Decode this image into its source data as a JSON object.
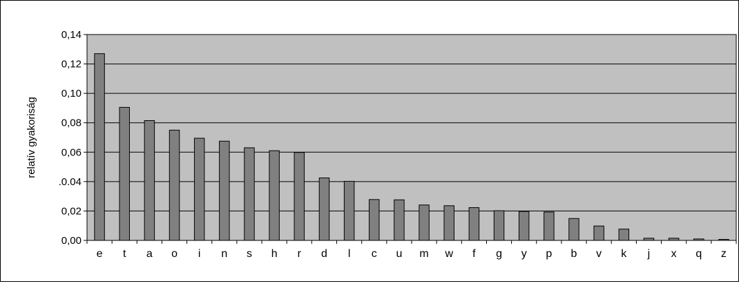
{
  "chart_data": {
    "type": "bar",
    "title": "",
    "xlabel": "",
    "ylabel": "relatív gyakoriság",
    "categories": [
      "e",
      "t",
      "a",
      "o",
      "i",
      "n",
      "s",
      "h",
      "r",
      "d",
      "l",
      "c",
      "u",
      "m",
      "w",
      "f",
      "g",
      "y",
      "p",
      "b",
      "v",
      "k",
      "j",
      "x",
      "q",
      "z"
    ],
    "values": [
      0.127,
      0.0905,
      0.0815,
      0.075,
      0.0695,
      0.0675,
      0.063,
      0.061,
      0.0598,
      0.0425,
      0.0402,
      0.0278,
      0.0276,
      0.0241,
      0.0236,
      0.0223,
      0.0202,
      0.0197,
      0.0193,
      0.0149,
      0.0098,
      0.0077,
      0.0015,
      0.0015,
      0.001,
      0.0007
    ],
    "yticks": [
      "0,00",
      "0,02",
      ".0.04",
      "0,06",
      "0,08",
      "0,10",
      "0,12",
      "0,14"
    ],
    "ylim": [
      0,
      0.14
    ],
    "grid": true,
    "legend": "none",
    "colors": {
      "plot_background": "#c0c0c0",
      "bar_fill": "#808080",
      "bar_stroke": "#000000",
      "gridline": "#000000",
      "frame": "#000000"
    }
  }
}
